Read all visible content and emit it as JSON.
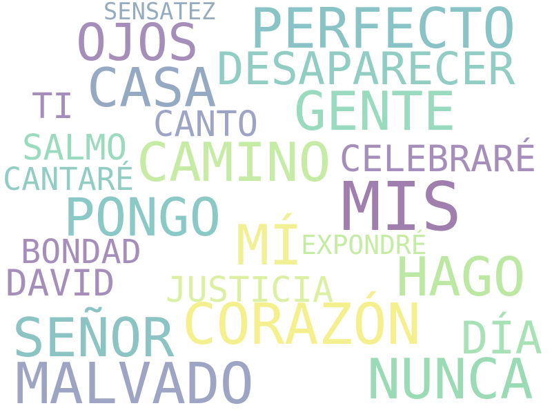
{
  "words": [
    {
      "text": "SENSATEZ",
      "color": "#96acbe"
    },
    {
      "text": "PERFECTO",
      "color": "#8ac3c5"
    },
    {
      "text": "OJOS",
      "color": "#a58fba"
    },
    {
      "text": "DESAPARECER",
      "color": "#92cdc4"
    },
    {
      "text": "CASA",
      "color": "#96a9c3"
    },
    {
      "text": "TI",
      "color": "#a58fba"
    },
    {
      "text": "GENTE",
      "color": "#9adabe"
    },
    {
      "text": "CANTO",
      "color": "#9ea5c4"
    },
    {
      "text": "SALMO",
      "color": "#9adabe"
    },
    {
      "text": "CAMINO",
      "color": "#c6eba4"
    },
    {
      "text": "CELEBRARÉ",
      "color": "#a58fba"
    },
    {
      "text": "CANTARÉ",
      "color": "#92cdc4"
    },
    {
      "text": "MIS",
      "color": "#a07eae"
    },
    {
      "text": "PONGO",
      "color": "#8ac9c5"
    },
    {
      "text": "MÍ",
      "color": "#f2f095"
    },
    {
      "text": "EXPONDRÉ",
      "color": "#c6eba4"
    },
    {
      "text": "BONDAD",
      "color": "#a58fba"
    },
    {
      "text": "HAGO",
      "color": "#bde8a3"
    },
    {
      "text": "DAVID",
      "color": "#a58fba"
    },
    {
      "text": "JUSTICIA",
      "color": "#dcf0a3"
    },
    {
      "text": "SEÑOR",
      "color": "#8cc3c3"
    },
    {
      "text": "CORAZÓN",
      "color": "#f5f08e"
    },
    {
      "text": "DÍA",
      "color": "#a8e1b6"
    },
    {
      "text": "MALVADO",
      "color": "#9ea5c4"
    },
    {
      "text": "NUNCA",
      "color": "#9adab4"
    }
  ]
}
